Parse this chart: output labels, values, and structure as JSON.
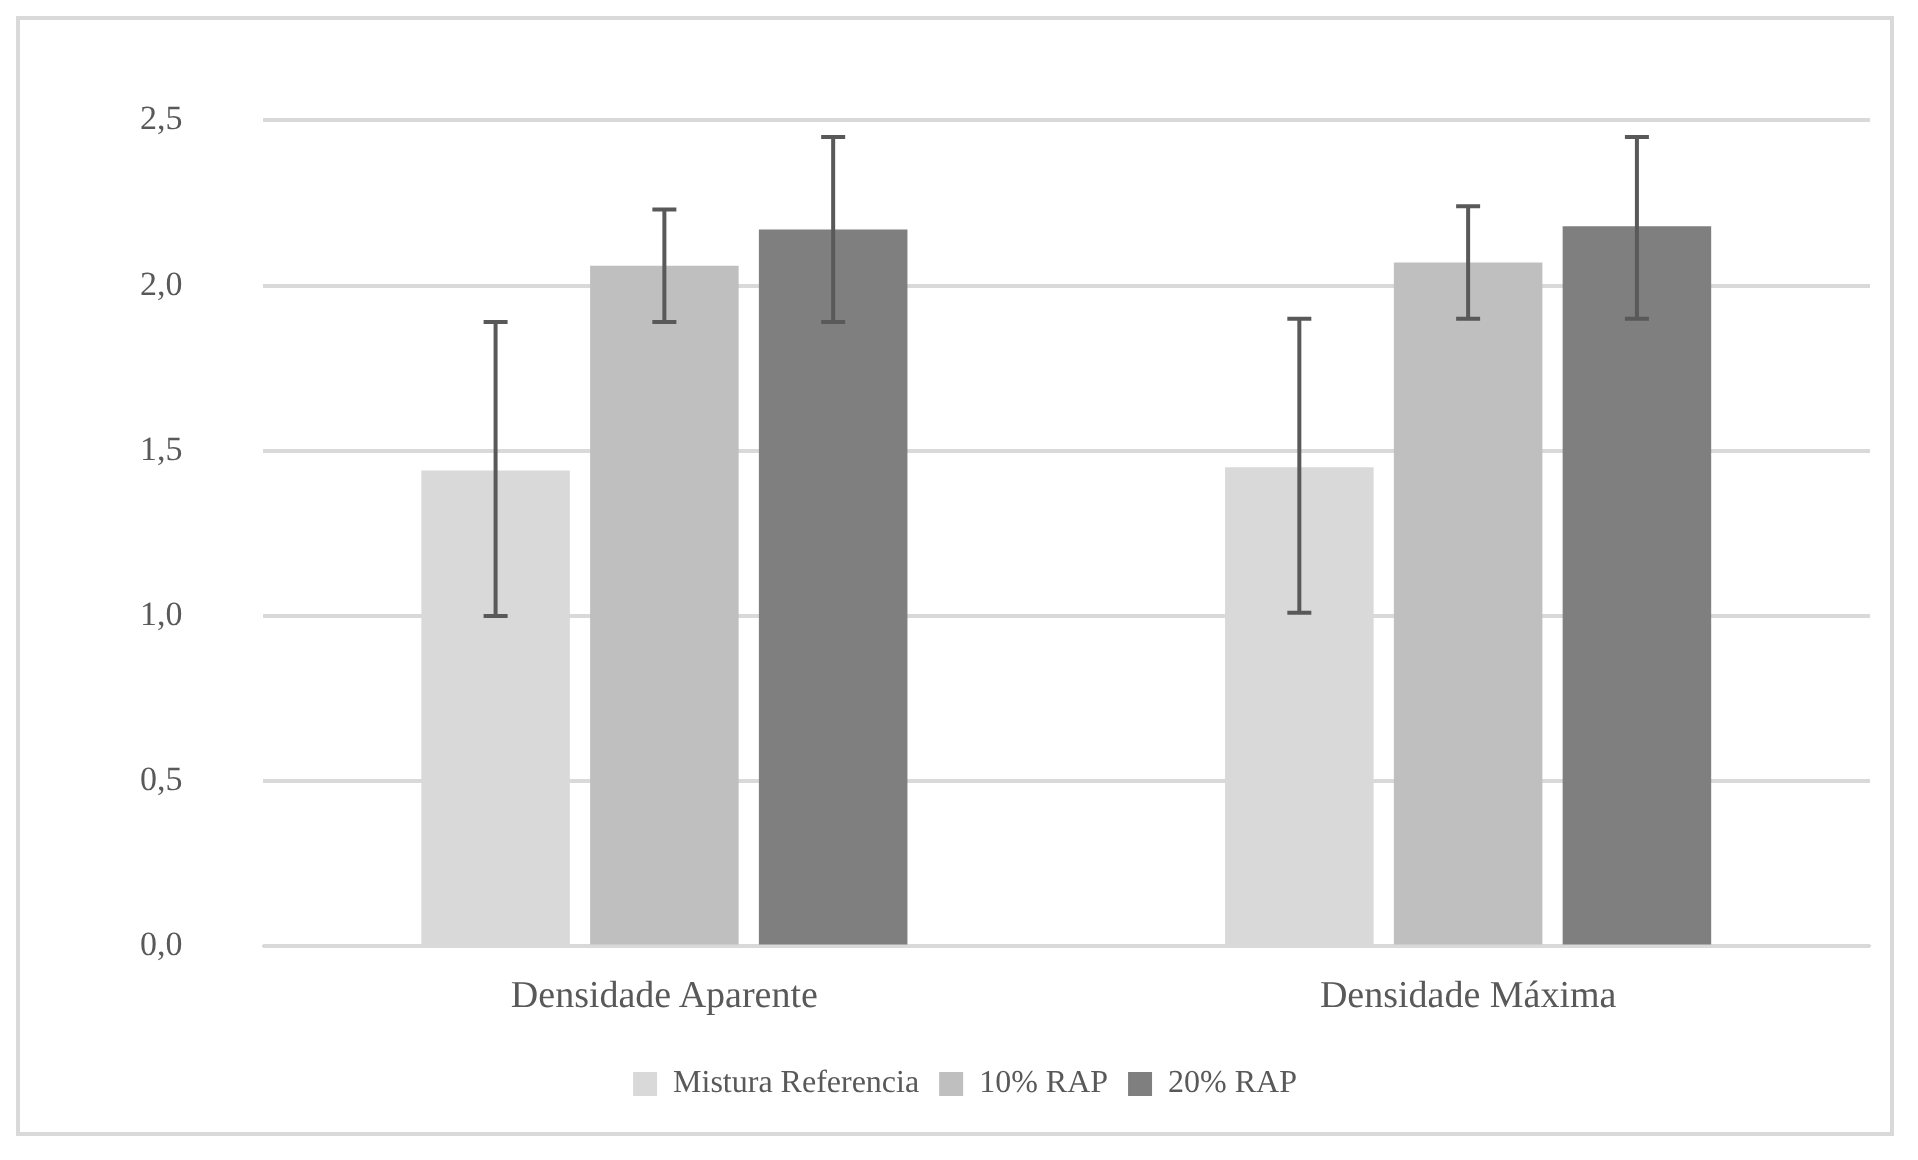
{
  "chart_data": {
    "type": "bar",
    "categories": [
      "Densidade Aparente",
      "Densidade Máxima"
    ],
    "series": [
      {
        "name": "Mistura Referencia",
        "color": "#d9d9d9",
        "values": [
          1.44,
          1.45
        ],
        "errors": [
          [
            1.0,
            1.89
          ],
          [
            1.01,
            1.9
          ]
        ]
      },
      {
        "name": "10% RAP",
        "color": "#bfbfbf",
        "values": [
          2.06,
          2.07
        ],
        "errors": [
          [
            1.89,
            2.23
          ],
          [
            1.9,
            2.24
          ]
        ]
      },
      {
        "name": "20% RAP",
        "color": "#7f7f7f",
        "values": [
          2.17,
          2.18
        ],
        "errors": [
          [
            1.89,
            2.45
          ],
          [
            1.9,
            2.45
          ]
        ]
      }
    ],
    "ylim": [
      0,
      2.5
    ],
    "yticks": [
      {
        "value": 0,
        "label": "0,0"
      },
      {
        "value": 0.5,
        "label": "0,5"
      },
      {
        "value": 1,
        "label": "1,0"
      },
      {
        "value": 1.5,
        "label": "1,5"
      },
      {
        "value": 2,
        "label": "2,0"
      },
      {
        "value": 2.5,
        "label": "2,5"
      }
    ],
    "grid": "y",
    "legend": "bottom"
  }
}
